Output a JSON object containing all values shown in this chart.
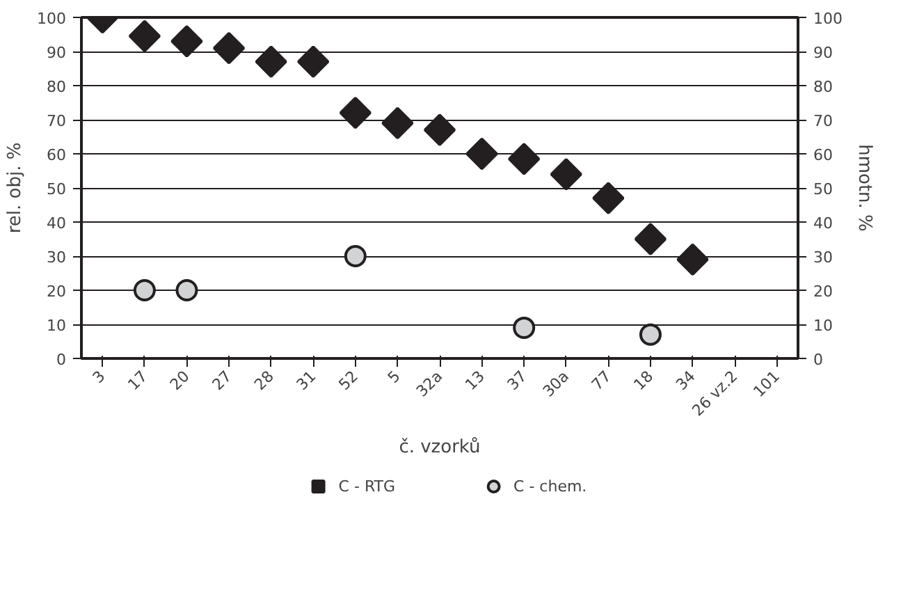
{
  "chart_data": {
    "type": "scatter",
    "xlabel": "č. vzorků",
    "ylabel": "rel. obj. %",
    "y2label": "hmotn. %",
    "categories": [
      "3",
      "17",
      "20",
      "27",
      "28",
      "31",
      "52",
      "5",
      "32a",
      "13",
      "37",
      "30a",
      "77",
      "18",
      "34",
      "26 vz.2",
      "101"
    ],
    "series": [
      {
        "name": "C - RTG",
        "color": "#231f20",
        "marker": "diamond",
        "values": [
          100,
          94.5,
          93,
          91,
          87,
          87,
          72,
          69,
          67,
          60,
          58.5,
          54,
          47,
          35,
          29,
          null,
          null
        ]
      },
      {
        "name": "C - chem.",
        "color": "#d1d3d4",
        "marker": "circle",
        "values": [
          null,
          20,
          20,
          null,
          null,
          null,
          30,
          null,
          null,
          null,
          9,
          null,
          null,
          7,
          null,
          null,
          null
        ]
      }
    ],
    "ylim": [
      0,
      100
    ],
    "yticks": [
      0,
      10,
      20,
      30,
      40,
      50,
      60,
      70,
      80,
      90,
      100
    ],
    "y2lim": [
      0,
      100
    ],
    "y2ticks": [
      0,
      10,
      20,
      30,
      40,
      50,
      60,
      70,
      80,
      90,
      100
    ],
    "grid": "y",
    "legend": "bottom"
  }
}
